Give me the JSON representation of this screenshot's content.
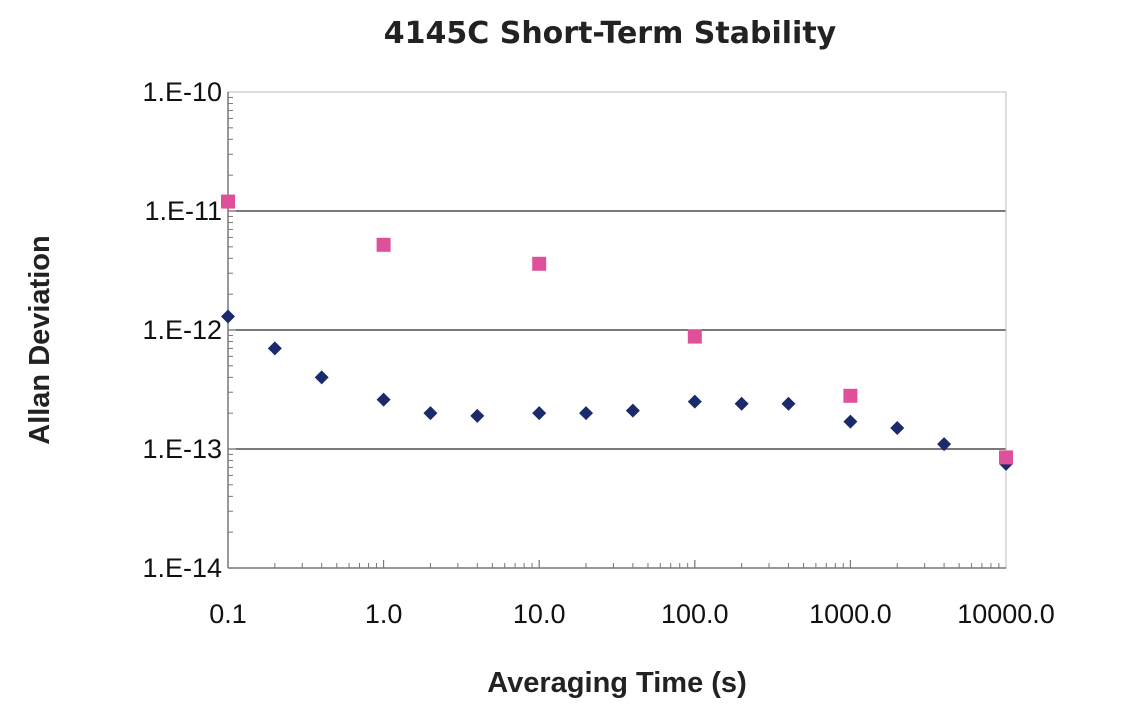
{
  "chart_data": {
    "type": "scatter",
    "title": "4145C Short-Term Stability",
    "xlabel": "Averaging Time (s)",
    "ylabel": "Allan Deviation",
    "x_scale": "log",
    "y_scale": "log",
    "xlim": [
      0.1,
      10000
    ],
    "ylim": [
      1e-14,
      1e-10
    ],
    "x_ticks": [
      0.1,
      1,
      10,
      100,
      1000,
      10000
    ],
    "x_tick_labels": [
      "0.1",
      "1.0",
      "10.0",
      "100.0",
      "1000.0",
      "10000.0"
    ],
    "y_ticks": [
      1e-14,
      1e-13,
      1e-12,
      1e-11,
      1e-10
    ],
    "y_tick_labels": [
      "1.E-14",
      "1.E-13",
      "1.E-12",
      "1.E-11",
      "1.E-10"
    ],
    "grid": "horizontal major lines",
    "legend": "none",
    "series": [
      {
        "marker": "diamond",
        "color": "#1b2a6b",
        "x": [
          0.1,
          0.2,
          0.4,
          1,
          2,
          4,
          10,
          20,
          40,
          100,
          200,
          400,
          1000,
          2000,
          4000,
          10000
        ],
        "y": [
          1.3e-12,
          7e-13,
          4e-13,
          2.6e-13,
          2e-13,
          1.9e-13,
          2e-13,
          2e-13,
          2.1e-13,
          2.5e-13,
          2.4e-13,
          2.4e-13,
          1.7e-13,
          1.5e-13,
          1.1e-13,
          7.5e-14
        ]
      },
      {
        "marker": "square",
        "color": "#e0509a",
        "x": [
          0.1,
          1,
          10,
          100,
          1000,
          10000
        ],
        "y": [
          1.2e-11,
          5.2e-12,
          3.6e-12,
          8.8e-13,
          2.8e-13,
          8.5e-14
        ]
      }
    ]
  }
}
